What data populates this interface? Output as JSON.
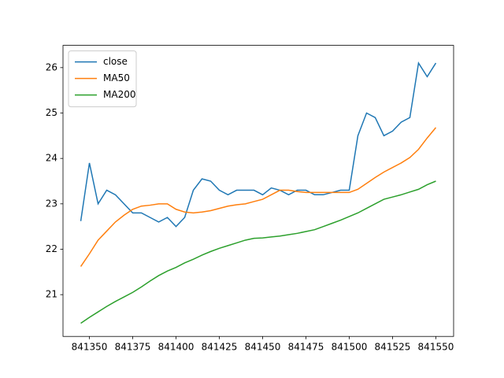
{
  "chart_data": {
    "type": "line",
    "x": [
      841345,
      841350,
      841355,
      841360,
      841365,
      841370,
      841375,
      841380,
      841385,
      841390,
      841395,
      841400,
      841405,
      841410,
      841415,
      841420,
      841425,
      841430,
      841435,
      841440,
      841445,
      841450,
      841455,
      841460,
      841465,
      841470,
      841475,
      841480,
      841485,
      841490,
      841495,
      841500,
      841505,
      841510,
      841515,
      841520,
      841525,
      841530,
      841535,
      841540,
      841545,
      841550
    ],
    "series": [
      {
        "name": "close",
        "color": "#1f77b4",
        "values": [
          22.62,
          23.9,
          23.0,
          23.3,
          23.2,
          23.0,
          22.8,
          22.8,
          22.7,
          22.6,
          22.7,
          22.5,
          22.7,
          23.3,
          23.55,
          23.5,
          23.3,
          23.2,
          23.3,
          23.3,
          23.3,
          23.2,
          23.35,
          23.3,
          23.2,
          23.3,
          23.3,
          23.2,
          23.2,
          23.25,
          23.3,
          23.3,
          24.5,
          25.0,
          24.9,
          24.5,
          24.6,
          24.8,
          24.9,
          26.1,
          25.8,
          26.1
        ]
      },
      {
        "name": "MA50",
        "color": "#ff7f0e",
        "values": [
          21.62,
          21.9,
          22.2,
          22.4,
          22.6,
          22.75,
          22.88,
          22.95,
          22.97,
          23.0,
          23.0,
          22.88,
          22.82,
          22.8,
          22.82,
          22.85,
          22.9,
          22.95,
          22.98,
          23.0,
          23.05,
          23.1,
          23.2,
          23.3,
          23.3,
          23.27,
          23.25,
          23.25,
          23.25,
          23.25,
          23.25,
          23.25,
          23.32,
          23.45,
          23.58,
          23.7,
          23.8,
          23.9,
          24.02,
          24.2,
          24.45,
          24.68
        ]
      },
      {
        "name": "MA200",
        "color": "#2ca02c",
        "values": [
          20.37,
          20.5,
          20.62,
          20.74,
          20.85,
          20.95,
          21.05,
          21.17,
          21.3,
          21.42,
          21.52,
          21.6,
          21.7,
          21.78,
          21.87,
          21.95,
          22.02,
          22.08,
          22.14,
          22.2,
          22.24,
          22.25,
          22.27,
          22.29,
          22.32,
          22.35,
          22.39,
          22.43,
          22.5,
          22.57,
          22.64,
          22.72,
          22.8,
          22.9,
          23.0,
          23.1,
          23.15,
          23.2,
          23.26,
          23.32,
          23.42,
          23.5
        ]
      }
    ],
    "xlim": [
      841334.75,
      841560.25
    ],
    "ylim": [
      20.08,
      26.49
    ],
    "xticks": [
      841350,
      841375,
      841400,
      841425,
      841450,
      841475,
      841500,
      841525,
      841550
    ],
    "yticks": [
      21,
      22,
      23,
      24,
      25,
      26
    ],
    "legend": "upper left"
  }
}
